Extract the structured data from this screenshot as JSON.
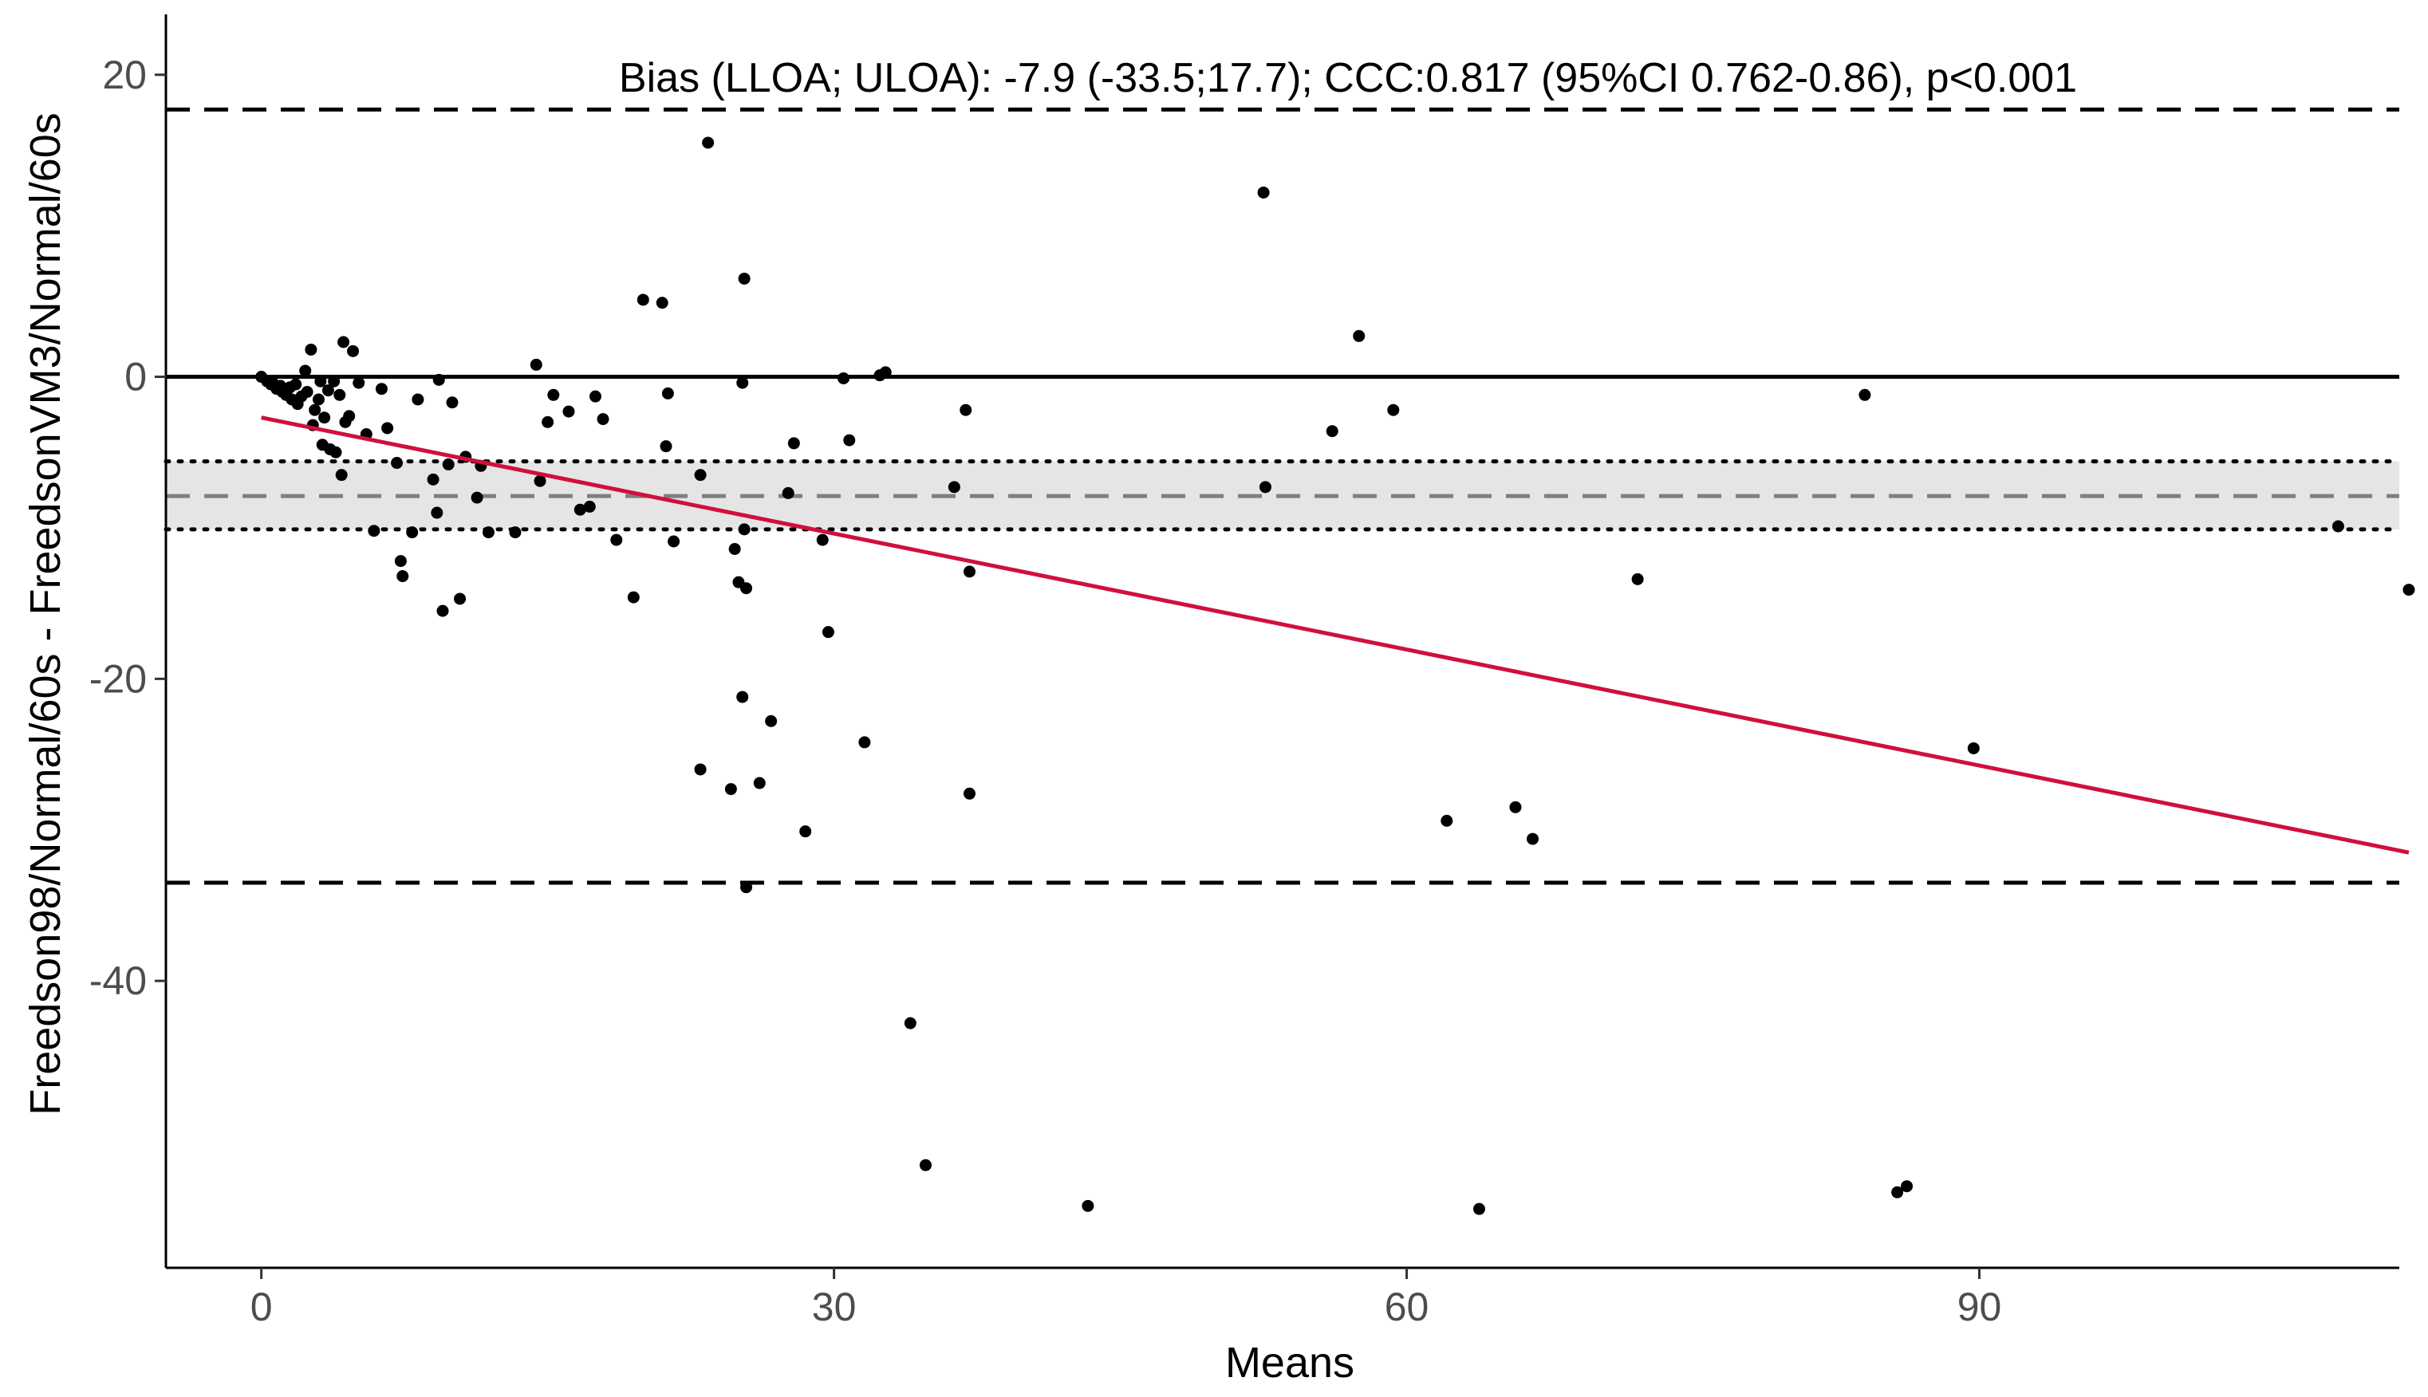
{
  "chart_data": {
    "type": "scatter",
    "title": "Bias (LLOA; ULOA): -7.9 (-33.5;17.7); CCC:0.817 (95%CI 0.762-0.86), p<0.001",
    "xlabel": "Means",
    "ylabel": "Freedson98/Normal/60s - FreedsonVM3/Normal/60s",
    "xlim": [
      -5,
      112
    ],
    "ylim": [
      -59,
      24
    ],
    "x_ticks": [
      0,
      30,
      60,
      90
    ],
    "y_ticks": [
      20,
      0,
      -20,
      -40
    ],
    "x_tick_labels": [
      "0",
      "30",
      "60",
      "90"
    ],
    "y_tick_labels": [
      "20",
      "0",
      "-20",
      "-40"
    ],
    "grid": false,
    "legend": "none",
    "reference_lines": {
      "zero": 0,
      "bias": -7.9,
      "bias_ci": [
        -10.1,
        -5.6
      ],
      "lloa": -33.5,
      "uloa": 17.7
    },
    "regression_line": {
      "x": [
        0,
        112.5
      ],
      "y": [
        -2.7,
        -31.5
      ]
    },
    "colors": {
      "points": "#000000",
      "regression": "#d0103a",
      "bias_band": "#e5e5e5",
      "bias_line": "#7f7f7f",
      "reference": "#000000"
    },
    "points": [
      [
        0.0,
        0.0
      ],
      [
        0.3,
        -0.3
      ],
      [
        0.5,
        -0.5
      ],
      [
        0.6,
        -0.4
      ],
      [
        0.8,
        -0.8
      ],
      [
        1.0,
        -0.6
      ],
      [
        1.1,
        -1.0
      ],
      [
        1.3,
        -1.2
      ],
      [
        1.5,
        -0.7
      ],
      [
        1.6,
        -1.5
      ],
      [
        1.8,
        -0.5
      ],
      [
        1.9,
        -1.8
      ],
      [
        2.1,
        -1.3
      ],
      [
        2.3,
        0.4
      ],
      [
        2.4,
        -1.0
      ],
      [
        2.6,
        1.8
      ],
      [
        2.7,
        -3.2
      ],
      [
        2.8,
        -2.2
      ],
      [
        3.0,
        -1.5
      ],
      [
        3.1,
        -0.3
      ],
      [
        3.2,
        -4.5
      ],
      [
        3.3,
        -2.7
      ],
      [
        3.5,
        -0.9
      ],
      [
        3.6,
        -4.8
      ],
      [
        3.8,
        -0.3
      ],
      [
        3.9,
        -5.0
      ],
      [
        4.1,
        -1.2
      ],
      [
        4.2,
        -6.5
      ],
      [
        4.3,
        2.3
      ],
      [
        4.4,
        -3.0
      ],
      [
        4.6,
        -2.6
      ],
      [
        4.8,
        1.7
      ],
      [
        5.1,
        -0.4
      ],
      [
        5.5,
        -3.8
      ],
      [
        5.9,
        -10.2
      ],
      [
        6.3,
        -0.8
      ],
      [
        6.6,
        -3.4
      ],
      [
        7.1,
        -5.7
      ],
      [
        7.4,
        -13.2
      ],
      [
        7.3,
        -12.2
      ],
      [
        7.9,
        -10.3
      ],
      [
        8.2,
        -1.5
      ],
      [
        9.0,
        -6.8
      ],
      [
        9.2,
        -9.0
      ],
      [
        9.3,
        -0.2
      ],
      [
        9.5,
        -15.5
      ],
      [
        9.8,
        -5.8
      ],
      [
        10.0,
        -1.7
      ],
      [
        10.4,
        -14.7
      ],
      [
        10.7,
        -5.3
      ],
      [
        11.3,
        -8.0
      ],
      [
        11.5,
        -5.9
      ],
      [
        11.9,
        -10.3
      ],
      [
        13.3,
        -10.3
      ],
      [
        14.4,
        0.8
      ],
      [
        14.6,
        -6.9
      ],
      [
        15.0,
        -3.0
      ],
      [
        15.3,
        -1.2
      ],
      [
        16.1,
        -2.3
      ],
      [
        16.7,
        -8.8
      ],
      [
        17.2,
        -8.6
      ],
      [
        17.5,
        -1.3
      ],
      [
        17.9,
        -2.8
      ],
      [
        18.6,
        -10.8
      ],
      [
        19.5,
        -14.6
      ],
      [
        20.0,
        5.1
      ],
      [
        21.0,
        4.9
      ],
      [
        21.2,
        -4.6
      ],
      [
        21.3,
        -1.1
      ],
      [
        21.6,
        -10.9
      ],
      [
        23.0,
        -26.0
      ],
      [
        23.0,
        -6.5
      ],
      [
        23.4,
        15.5
      ],
      [
        24.6,
        -27.3
      ],
      [
        24.8,
        -11.4
      ],
      [
        25.0,
        -13.6
      ],
      [
        25.2,
        -21.2
      ],
      [
        25.2,
        -0.4
      ],
      [
        25.3,
        -10.1
      ],
      [
        25.3,
        6.5
      ],
      [
        25.4,
        -14.0
      ],
      [
        25.4,
        -33.8
      ],
      [
        26.1,
        -26.9
      ],
      [
        26.7,
        -22.8
      ],
      [
        27.6,
        -7.7
      ],
      [
        27.9,
        -4.4
      ],
      [
        28.5,
        -30.1
      ],
      [
        29.4,
        -10.8
      ],
      [
        29.7,
        -16.9
      ],
      [
        30.5,
        -0.1
      ],
      [
        30.8,
        -4.2
      ],
      [
        31.6,
        -24.2
      ],
      [
        32.4,
        0.1
      ],
      [
        32.7,
        0.3
      ],
      [
        34.0,
        -42.8
      ],
      [
        34.8,
        -52.2
      ],
      [
        36.3,
        -7.3
      ],
      [
        36.9,
        -2.2
      ],
      [
        37.1,
        -12.9
      ],
      [
        37.1,
        -27.6
      ],
      [
        43.3,
        -54.9
      ],
      [
        52.5,
        12.2
      ],
      [
        52.6,
        -7.3
      ],
      [
        56.1,
        -3.6
      ],
      [
        57.5,
        2.7
      ],
      [
        59.3,
        -2.2
      ],
      [
        62.1,
        -29.4
      ],
      [
        63.8,
        -55.1
      ],
      [
        65.7,
        -28.5
      ],
      [
        66.6,
        -30.6
      ],
      [
        72.1,
        -13.4
      ],
      [
        84.0,
        -1.2
      ],
      [
        85.7,
        -54.0
      ],
      [
        86.2,
        -53.6
      ],
      [
        89.7,
        -24.6
      ],
      [
        108.8,
        -9.9
      ],
      [
        112.5,
        -14.1
      ]
    ]
  }
}
